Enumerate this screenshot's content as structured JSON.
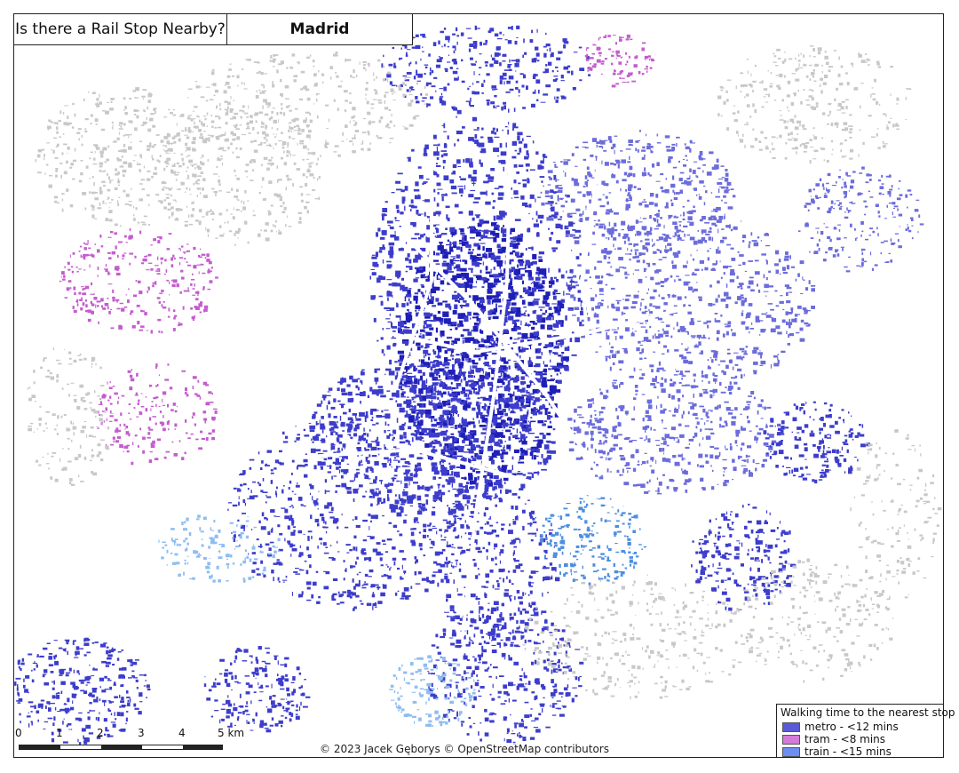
{
  "title": {
    "question": "Is there a Rail Stop Nearby?",
    "city": "Madrid"
  },
  "legend": {
    "title": "Walking time to the nearest stop",
    "items": [
      {
        "label": "metro - <12 mins",
        "color": "#5a5ad6"
      },
      {
        "label": "tram - <8 mins",
        "color": "#d47ad8"
      },
      {
        "label": "train - <15 mins",
        "color": "#6b8ef0"
      }
    ]
  },
  "scale_bar": {
    "labels": [
      "0",
      "1",
      "2",
      "3",
      "4",
      "5 km"
    ]
  },
  "attribution": "© 2023 Jacek Gęborys   © OpenStreetMap contributors",
  "colors": {
    "metro_dark": "#1f1fb8",
    "metro_mid": "#3d3dcc",
    "metro_light": "#6c6cdc",
    "tram": "#c45ccf",
    "train": "#4b8fe0",
    "train_light": "#8fbdf0",
    "none": "#c8c8c8"
  }
}
